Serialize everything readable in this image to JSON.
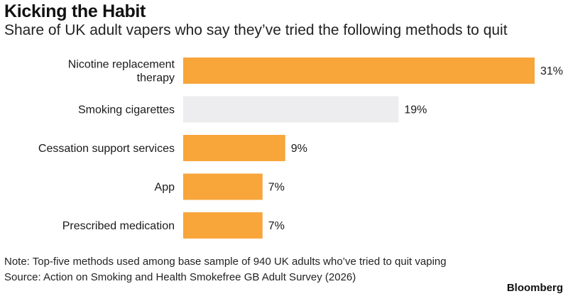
{
  "title": "Kicking the Habit",
  "subtitle": "Share of UK adult vapers who say they’ve tried the following methods to quit",
  "note": "Note: Top-five methods used among base sample of 940 UK adults who’ve tried to quit vaping",
  "source": "Source: Action on Smoking and Health Smokefree GB Adult Survey (2026)",
  "brand": "Bloomberg",
  "colors": {
    "primary_bar": "#F8A53A",
    "highlight_bar": "#EDEDEF"
  },
  "chart_data": {
    "type": "bar",
    "orientation": "horizontal",
    "categories": [
      [
        "Nicotine replacement",
        "therapy"
      ],
      [
        "Smoking cigarettes"
      ],
      [
        "Cessation support services"
      ],
      [
        "App"
      ],
      [
        "Prescribed medication"
      ]
    ],
    "values": [
      31,
      19,
      9,
      7,
      7
    ],
    "value_labels": [
      "31%",
      "19%",
      "9%",
      "7%",
      "7%"
    ],
    "bar_colors": [
      "#F8A53A",
      "#EDEDEF",
      "#F8A53A",
      "#F8A53A",
      "#F8A53A"
    ],
    "unit": "%",
    "xlim": [
      0,
      31
    ],
    "grid": false,
    "legend": "none"
  }
}
